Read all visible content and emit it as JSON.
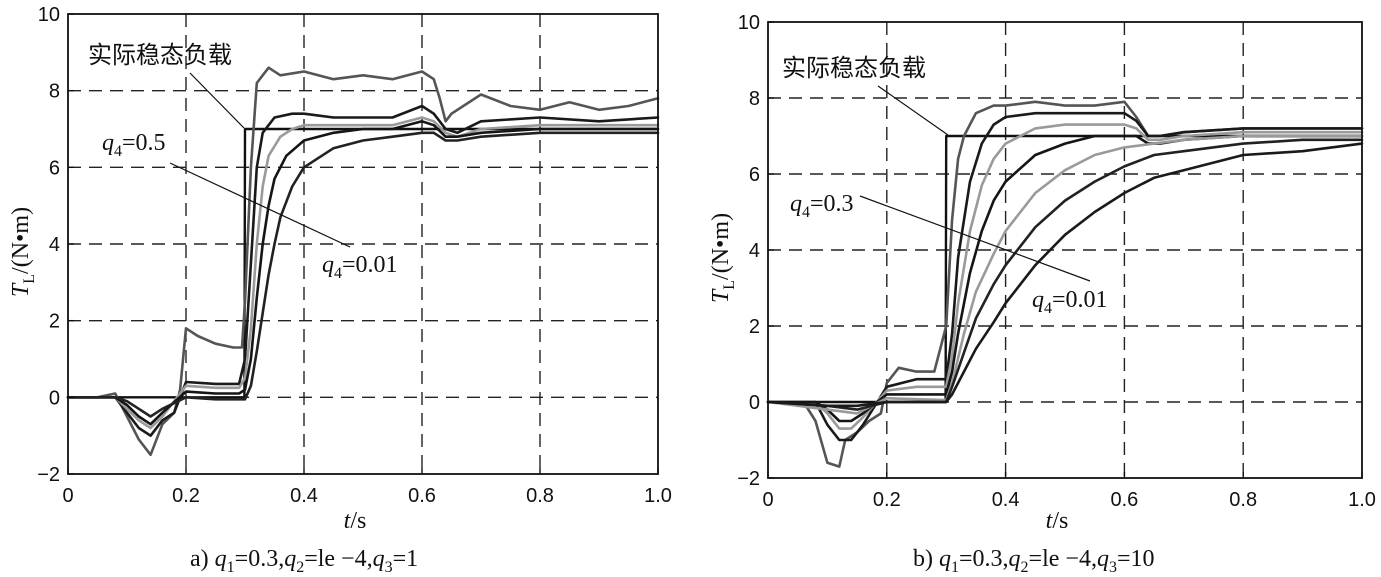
{
  "chart_data": [
    {
      "id": "a",
      "type": "line",
      "caption": "a) q1=0.3,q2=le −4,q3=1",
      "caption_parts": {
        "prefix": "a) ",
        "q1": "q",
        "q1_sub": "1",
        "q1_val": "=0.3,",
        "q2": "q",
        "q2_sub": "2",
        "q2_val": "=le −4,",
        "q3": "q",
        "q3_sub": "3",
        "q3_val": "=1"
      },
      "xlabel": "t/s",
      "ylabel": "TL/(N•m)",
      "xlim": [
        0,
        1.0
      ],
      "ylim": [
        -2,
        10
      ],
      "xticks": [
        "0",
        "0.2",
        "0.4",
        "0.6",
        "0.8",
        "1.0"
      ],
      "yticks": [
        "−2",
        "0",
        "2",
        "4",
        "6",
        "8",
        "10"
      ],
      "grid": true,
      "annotations": {
        "actual_load": "实际稳态负载",
        "q_hi": {
          "sym": "q",
          "sub": "4",
          "val": "=0.5"
        },
        "q_lo": {
          "sym": "q",
          "sub": "4",
          "val": "=0.01"
        }
      },
      "series": [
        {
          "color": "#111111",
          "role": "step",
          "x": [
            0,
            0.299,
            0.3,
            0.6,
            0.61,
            1.0
          ],
          "y": [
            0,
            0,
            7.0,
            7.0,
            7.0,
            7.0
          ]
        },
        {
          "color": "#555555",
          "x": [
            0,
            0.05,
            0.08,
            0.1,
            0.12,
            0.14,
            0.16,
            0.18,
            0.19,
            0.2,
            0.22,
            0.25,
            0.28,
            0.295,
            0.3,
            0.31,
            0.32,
            0.33,
            0.34,
            0.36,
            0.4,
            0.45,
            0.5,
            0.55,
            0.6,
            0.62,
            0.63,
            0.64,
            0.65,
            0.7,
            0.75,
            0.8,
            0.85,
            0.9,
            0.95,
            1.0
          ],
          "y": [
            0,
            0,
            0.1,
            -0.5,
            -1.1,
            -1.5,
            -0.7,
            -0.4,
            0.2,
            1.8,
            1.6,
            1.4,
            1.3,
            1.3,
            2.5,
            6.0,
            8.2,
            8.4,
            8.6,
            8.4,
            8.5,
            8.3,
            8.4,
            8.3,
            8.5,
            8.3,
            7.8,
            7.2,
            7.4,
            7.9,
            7.6,
            7.5,
            7.7,
            7.5,
            7.6,
            7.8
          ]
        },
        {
          "color": "#1a1a1a",
          "x": [
            0,
            0.08,
            0.1,
            0.12,
            0.14,
            0.16,
            0.18,
            0.2,
            0.25,
            0.29,
            0.3,
            0.31,
            0.32,
            0.33,
            0.35,
            0.38,
            0.4,
            0.45,
            0.5,
            0.55,
            0.6,
            0.62,
            0.64,
            0.66,
            0.7,
            0.8,
            0.9,
            1.0
          ],
          "y": [
            0,
            0,
            -0.4,
            -0.8,
            -1.0,
            -0.6,
            -0.4,
            0.4,
            0.35,
            0.35,
            1.0,
            3.5,
            6.0,
            6.9,
            7.3,
            7.4,
            7.4,
            7.3,
            7.3,
            7.3,
            7.6,
            7.4,
            7.0,
            6.9,
            7.2,
            7.3,
            7.2,
            7.3
          ]
        },
        {
          "color": "#9a9a9a",
          "x": [
            0,
            0.08,
            0.1,
            0.12,
            0.14,
            0.16,
            0.2,
            0.25,
            0.29,
            0.3,
            0.31,
            0.32,
            0.33,
            0.34,
            0.36,
            0.38,
            0.4,
            0.45,
            0.5,
            0.55,
            0.6,
            0.62,
            0.64,
            0.66,
            0.7,
            0.8,
            0.9,
            1.0
          ],
          "y": [
            0,
            0,
            -0.3,
            -0.6,
            -0.8,
            -0.5,
            0.3,
            0.25,
            0.25,
            0.5,
            1.8,
            4.0,
            5.5,
            6.3,
            6.8,
            7.0,
            7.1,
            7.1,
            7.1,
            7.1,
            7.3,
            7.2,
            6.9,
            6.8,
            7.0,
            7.1,
            7.1,
            7.1
          ]
        },
        {
          "color": "#151515",
          "x": [
            0,
            0.08,
            0.1,
            0.12,
            0.14,
            0.16,
            0.2,
            0.25,
            0.29,
            0.3,
            0.31,
            0.32,
            0.33,
            0.34,
            0.35,
            0.37,
            0.4,
            0.45,
            0.5,
            0.55,
            0.6,
            0.62,
            0.64,
            0.66,
            0.7,
            0.8,
            0.9,
            1.0
          ],
          "y": [
            0,
            0,
            -0.2,
            -0.5,
            -0.7,
            -0.4,
            0.15,
            0.1,
            0.1,
            0.2,
            1.0,
            2.6,
            4.0,
            5.0,
            5.7,
            6.3,
            6.7,
            6.9,
            7.0,
            7.0,
            7.2,
            7.1,
            6.8,
            6.8,
            6.9,
            7.0,
            7.0,
            7.0
          ]
        },
        {
          "color": "#222222",
          "x": [
            0,
            0.08,
            0.1,
            0.12,
            0.14,
            0.16,
            0.2,
            0.25,
            0.3,
            0.31,
            0.32,
            0.33,
            0.34,
            0.35,
            0.36,
            0.38,
            0.4,
            0.45,
            0.5,
            0.55,
            0.6,
            0.62,
            0.64,
            0.66,
            0.7,
            0.8,
            0.9,
            1.0
          ],
          "y": [
            0,
            0,
            -0.1,
            -0.3,
            -0.5,
            -0.3,
            0.0,
            -0.05,
            -0.05,
            0.3,
            1.2,
            2.2,
            3.2,
            4.0,
            4.7,
            5.5,
            6.0,
            6.5,
            6.7,
            6.8,
            6.9,
            6.9,
            6.7,
            6.7,
            6.8,
            6.9,
            6.9,
            6.9
          ]
        }
      ]
    },
    {
      "id": "b",
      "type": "line",
      "caption": "b) q1=0.3,q2=le −4,q3=10",
      "caption_parts": {
        "prefix": "b) ",
        "q1": "q",
        "q1_sub": "1",
        "q1_val": "=0.3,",
        "q2": "q",
        "q2_sub": "2",
        "q2_val": "=le −4,",
        "q3": "q",
        "q3_sub": "3",
        "q3_val": "=10"
      },
      "xlabel": "t/s",
      "ylabel": "TL/(N•m)",
      "xlim": [
        0,
        1.0
      ],
      "ylim": [
        -2,
        10
      ],
      "xticks": [
        "0",
        "0.2",
        "0.4",
        "0.6",
        "0.8",
        "1.0"
      ],
      "yticks": [
        "−2",
        "0",
        "2",
        "4",
        "6",
        "8",
        "10"
      ],
      "grid": true,
      "annotations": {
        "actual_load": "实际稳态负载",
        "q_hi": {
          "sym": "q",
          "sub": "4",
          "val": "=0.3"
        },
        "q_lo": {
          "sym": "q",
          "sub": "4",
          "val": "=0.01"
        }
      },
      "series": [
        {
          "color": "#111111",
          "role": "step",
          "x": [
            0,
            0.299,
            0.3,
            1.0
          ],
          "y": [
            0,
            0,
            7.0,
            7.0
          ]
        },
        {
          "color": "#555555",
          "x": [
            0,
            0.06,
            0.08,
            0.1,
            0.12,
            0.13,
            0.15,
            0.17,
            0.19,
            0.2,
            0.22,
            0.25,
            0.28,
            0.3,
            0.31,
            0.32,
            0.33,
            0.35,
            0.38,
            0.4,
            0.45,
            0.5,
            0.55,
            0.6,
            0.62,
            0.64,
            0.66,
            0.7,
            0.8,
            0.9,
            1.0
          ],
          "y": [
            0,
            0,
            -0.5,
            -1.6,
            -1.7,
            -1.0,
            -0.8,
            -0.5,
            -0.3,
            0.5,
            0.9,
            0.8,
            0.8,
            2.0,
            4.8,
            6.4,
            7.0,
            7.6,
            7.8,
            7.8,
            7.9,
            7.8,
            7.8,
            7.9,
            7.5,
            7.0,
            7.0,
            7.1,
            7.2,
            7.2,
            7.2
          ]
        },
        {
          "color": "#1a1a1a",
          "x": [
            0,
            0.08,
            0.1,
            0.12,
            0.14,
            0.16,
            0.2,
            0.25,
            0.3,
            0.31,
            0.32,
            0.34,
            0.36,
            0.38,
            0.4,
            0.45,
            0.5,
            0.55,
            0.6,
            0.62,
            0.64,
            0.66,
            0.7,
            0.8,
            0.9,
            1.0
          ],
          "y": [
            0,
            0,
            -0.6,
            -1.0,
            -1.0,
            -0.6,
            0.4,
            0.6,
            0.6,
            1.8,
            3.8,
            5.8,
            6.8,
            7.3,
            7.5,
            7.6,
            7.6,
            7.6,
            7.6,
            7.4,
            7.0,
            7.0,
            7.1,
            7.2,
            7.2,
            7.2
          ]
        },
        {
          "color": "#9a9a9a",
          "x": [
            0,
            0.08,
            0.1,
            0.12,
            0.14,
            0.16,
            0.2,
            0.25,
            0.3,
            0.31,
            0.32,
            0.34,
            0.36,
            0.38,
            0.4,
            0.45,
            0.5,
            0.55,
            0.6,
            0.62,
            0.64,
            0.66,
            0.7,
            0.8,
            0.9,
            1.0
          ],
          "y": [
            0,
            0,
            -0.3,
            -0.7,
            -0.7,
            -0.4,
            0.3,
            0.4,
            0.4,
            1.2,
            2.6,
            4.5,
            5.7,
            6.4,
            6.8,
            7.2,
            7.3,
            7.3,
            7.3,
            7.2,
            6.9,
            6.9,
            7.0,
            7.1,
            7.1,
            7.1
          ]
        },
        {
          "color": "#151515",
          "x": [
            0,
            0.08,
            0.1,
            0.12,
            0.14,
            0.16,
            0.2,
            0.25,
            0.3,
            0.31,
            0.32,
            0.34,
            0.36,
            0.38,
            0.4,
            0.45,
            0.5,
            0.55,
            0.6,
            0.62,
            0.64,
            0.66,
            0.7,
            0.8,
            0.9,
            1.0
          ],
          "y": [
            0,
            0,
            -0.2,
            -0.5,
            -0.5,
            -0.3,
            0.2,
            0.2,
            0.2,
            0.8,
            1.8,
            3.4,
            4.5,
            5.3,
            5.8,
            6.5,
            6.8,
            7.0,
            7.0,
            7.0,
            6.8,
            6.8,
            6.9,
            7.0,
            7.0,
            7.0
          ]
        },
        {
          "color": "#9a9a9a",
          "x": [
            0,
            0.1,
            0.15,
            0.2,
            0.3,
            0.31,
            0.33,
            0.35,
            0.38,
            0.4,
            0.45,
            0.5,
            0.55,
            0.6,
            0.65,
            0.7,
            0.8,
            0.9,
            1.0
          ],
          "y": [
            0,
            -0.2,
            -0.3,
            0.1,
            0.05,
            0.5,
            1.8,
            2.9,
            3.9,
            4.5,
            5.5,
            6.1,
            6.5,
            6.7,
            6.8,
            6.9,
            7.0,
            7.0,
            7.0
          ]
        },
        {
          "color": "#222222",
          "x": [
            0,
            0.1,
            0.15,
            0.2,
            0.3,
            0.31,
            0.33,
            0.35,
            0.38,
            0.4,
            0.45,
            0.5,
            0.55,
            0.6,
            0.65,
            0.7,
            0.8,
            0.9,
            1.0
          ],
          "y": [
            0,
            -0.1,
            -0.2,
            0.0,
            0.0,
            0.4,
            1.3,
            2.2,
            3.1,
            3.6,
            4.6,
            5.3,
            5.8,
            6.2,
            6.5,
            6.6,
            6.8,
            6.9,
            6.9
          ]
        },
        {
          "color": "#1a1a1a",
          "x": [
            0,
            0.1,
            0.15,
            0.2,
            0.3,
            0.31,
            0.33,
            0.35,
            0.38,
            0.4,
            0.45,
            0.5,
            0.55,
            0.6,
            0.65,
            0.7,
            0.75,
            0.8,
            0.9,
            1.0
          ],
          "y": [
            0,
            -0.1,
            -0.1,
            0.0,
            0.0,
            0.2,
            0.8,
            1.4,
            2.1,
            2.6,
            3.6,
            4.4,
            5.0,
            5.5,
            5.9,
            6.1,
            6.3,
            6.5,
            6.6,
            6.8
          ]
        }
      ]
    }
  ]
}
